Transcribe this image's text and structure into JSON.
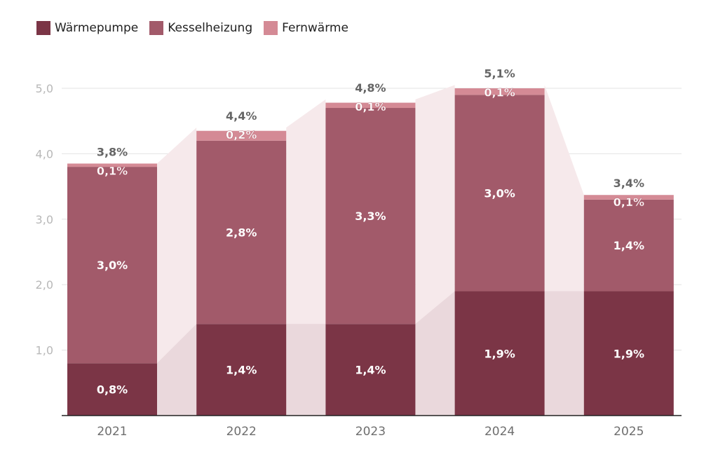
{
  "chart_data": {
    "type": "bar",
    "stacked": true,
    "categories": [
      "2021",
      "2022",
      "2023",
      "2024",
      "2025"
    ],
    "series": [
      {
        "name": "Wärmepumpe",
        "color": "#7b3546",
        "values": [
          0.8,
          1.4,
          1.4,
          1.9,
          1.9
        ],
        "labels": [
          "0,8%",
          "1,4%",
          "1,4%",
          "1,9%",
          "1,9%"
        ]
      },
      {
        "name": "Kesselheizung",
        "color": "#a25a6a",
        "values": [
          3.0,
          2.8,
          3.3,
          3.0,
          1.4
        ],
        "labels": [
          "3,0%",
          "2,8%",
          "3,3%",
          "3,0%",
          "1,4%"
        ]
      },
      {
        "name": "Fernwärme",
        "color": "#d48a95",
        "values": [
          0.05,
          0.15,
          0.08,
          0.1,
          0.07
        ],
        "labels": [
          "0,1%",
          "0,2%",
          "0,1%",
          "0,1%",
          "0,1%"
        ]
      }
    ],
    "totals": [
      3.85,
      4.4,
      4.83,
      5.05,
      3.37
    ],
    "total_labels": [
      "3,8%",
      "4,4%",
      "4,8%",
      "5,1%",
      "3,4%"
    ],
    "yticks": [
      "1,0",
      "2,0",
      "3,0",
      "4,0",
      "5,0"
    ],
    "ytick_values": [
      1,
      2,
      3,
      4,
      5
    ],
    "ylim": [
      0,
      5.3
    ],
    "grid": true,
    "legend_position": "top-left"
  }
}
